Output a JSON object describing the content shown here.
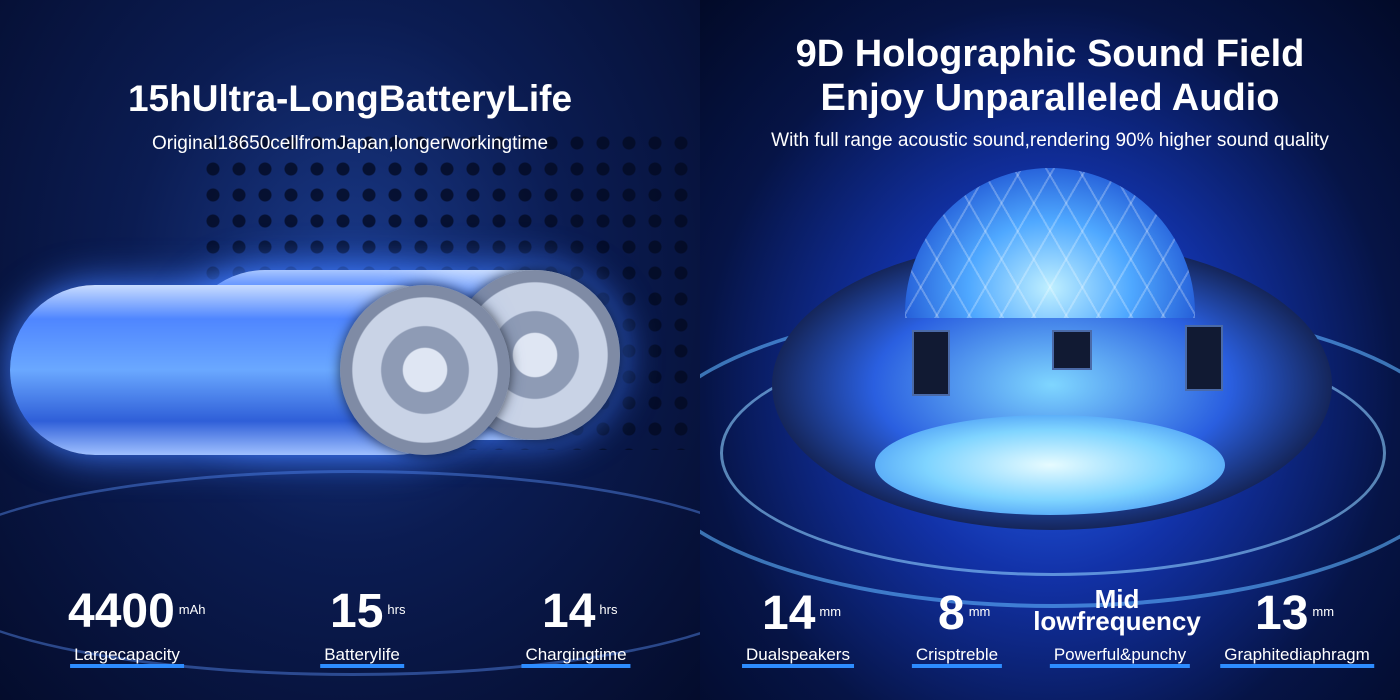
{
  "left": {
    "title": "15hUltra-LongBatteryLife",
    "subtitle": "Original18650cellfromJapan,longerworkingtime",
    "stats": [
      {
        "value": "4400",
        "unit": "mAh",
        "label": "Largecapacity"
      },
      {
        "value": "15",
        "unit": "hrs",
        "label": "Batterylife"
      },
      {
        "value": "14",
        "unit": "hrs",
        "label": "Chargingtime"
      }
    ]
  },
  "right": {
    "title_line1": "9D Holographic Sound Field",
    "title_line2": "Enjoy Unparalleled Audio",
    "subtitle": "With full range acoustic sound,rendering 90% higher sound quality",
    "stats": [
      {
        "value": "14",
        "unit": "mm",
        "label": "Dualspeakers"
      },
      {
        "value": "8",
        "unit": "mm",
        "label": "Crisptreble"
      },
      {
        "value_line1": "Mid",
        "value_line2": "lowfrequency",
        "label": "Powerful&punchy"
      },
      {
        "value": "13",
        "unit": "mm",
        "label": "Graphitediaphragm"
      }
    ]
  },
  "colors": {
    "accent_underline": "#2d8cff",
    "text": "#ffffff",
    "background": "#0b1c52"
  }
}
